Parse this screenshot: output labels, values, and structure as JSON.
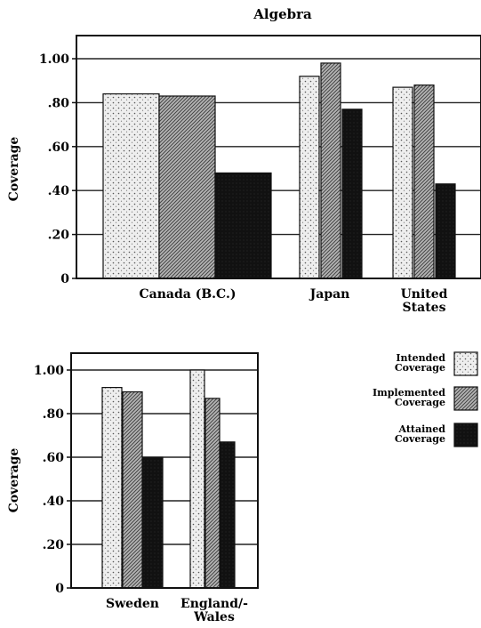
{
  "chart_data": [
    {
      "type": "bar",
      "title": "Algebra",
      "ylabel": "Coverage",
      "ylim": [
        0,
        1.1
      ],
      "yticks": [
        "0",
        ".20",
        ".40",
        ".60",
        ".80",
        "1.00"
      ],
      "grid": true,
      "categories": [
        "Canada (B.C.)",
        "Japan",
        "United States"
      ],
      "category_labels": [
        [
          "Canada (B.C.)"
        ],
        [
          "Japan"
        ],
        [
          "United",
          "States"
        ]
      ],
      "series": [
        {
          "name": "Intended Coverage",
          "values": [
            0.84,
            0.92,
            0.87
          ]
        },
        {
          "name": "Implemented Coverage",
          "values": [
            0.83,
            0.98,
            0.88
          ]
        },
        {
          "name": "Attained Coverage",
          "values": [
            0.48,
            0.77,
            0.43
          ]
        }
      ]
    },
    {
      "type": "bar",
      "title": "",
      "ylabel": "Coverage",
      "ylim": [
        0,
        1.1
      ],
      "yticks": [
        "0",
        ".20",
        ".40",
        ".60",
        ".80",
        "1.00"
      ],
      "grid": true,
      "categories": [
        "Sweden",
        "England/Wales"
      ],
      "category_labels": [
        [
          "Sweden"
        ],
        [
          "England/-",
          "Wales"
        ]
      ],
      "series": [
        {
          "name": "Intended Coverage",
          "values": [
            0.92,
            1.0
          ]
        },
        {
          "name": "Implemented Coverage",
          "values": [
            0.9,
            0.87
          ]
        },
        {
          "name": "Attained Coverage",
          "values": [
            0.6,
            0.67
          ]
        }
      ]
    }
  ],
  "legend": {
    "placement": "right",
    "items": [
      {
        "lines": [
          "Intended",
          "Coverage"
        ],
        "pattern": "intended"
      },
      {
        "lines": [
          "Implemented",
          "Coverage"
        ],
        "pattern": "implemented"
      },
      {
        "lines": [
          "Attained",
          "Coverage"
        ],
        "pattern": "attained"
      }
    ]
  },
  "colors": {
    "intended": "#e6e6e6",
    "implemented": "#9a9a9a",
    "attained": "#111111"
  }
}
